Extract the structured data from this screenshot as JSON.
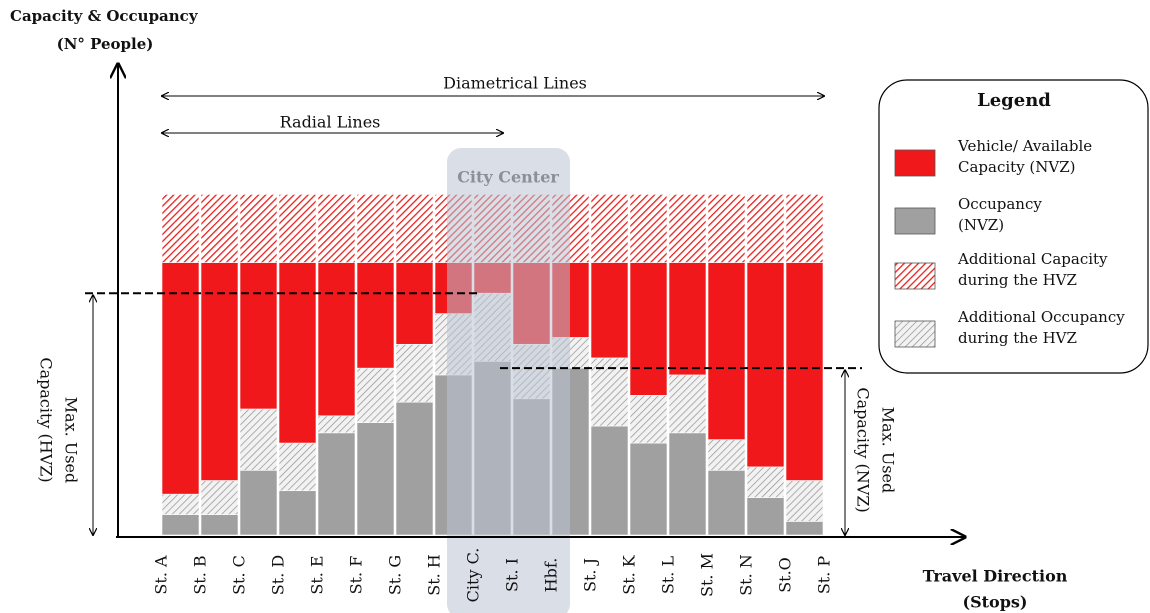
{
  "chart_data": {
    "type": "bar",
    "title": [
      "Capacity & Occupancy",
      "(N° People)"
    ],
    "x_label": [
      "Travel Direction",
      "(Stops)"
    ],
    "stops": [
      "St. A",
      "St. B",
      "St. C",
      "St. D",
      "St. E",
      "St. F",
      "St. G",
      "St. H",
      "City C.",
      "St. I",
      "Hbf.",
      "St. J",
      "St. K",
      "St. L",
      "St. M",
      "St. N",
      "St.O",
      "St. P"
    ],
    "ylim": [
      0,
      138
    ],
    "series": [
      {
        "name": [
          "Occupancy",
          "(NVZ)"
        ],
        "color": "#a0a0a0",
        "pattern": "solid",
        "values": [
          6,
          6,
          19,
          13,
          30,
          33,
          39,
          47,
          51,
          40,
          49,
          32,
          27,
          30,
          19,
          11,
          4
        ]
      },
      {
        "name": [
          "Additional Occupancy",
          "during the HVZ"
        ],
        "color": "#909090",
        "pattern": "hatch",
        "values": [
          6,
          10,
          18,
          14,
          5,
          16,
          17,
          18,
          20,
          16,
          9,
          20,
          14,
          17,
          9,
          9,
          12
        ]
      },
      {
        "name": [
          "Vehicle/ Available",
          "Capacity (NVZ)"
        ],
        "color": "#f0181a",
        "pattern": "solid",
        "values": [
          68,
          64,
          43,
          53,
          45,
          31,
          24,
          15,
          9,
          24,
          22,
          28,
          39,
          33,
          52,
          60,
          64
        ]
      },
      {
        "name": [
          "Additional Capacity",
          "during the HVZ"
        ],
        "color": "#e8201c",
        "pattern": "hatch",
        "values": [
          20,
          20,
          20,
          20,
          20,
          20,
          20,
          20,
          20,
          20,
          20,
          20,
          20,
          20,
          20,
          20,
          20
        ]
      }
    ],
    "legend_title": "Legend",
    "legend_order": [
      2,
      0,
      3,
      1
    ],
    "annotations": {
      "diametrical": "Diametrical Lines",
      "radial": "Radial Lines",
      "city_center": "City Center",
      "max_hvz": [
        "Max. Used",
        "Capacity (HVZ)"
      ],
      "max_nvz": [
        "Max. Used",
        "Capacity (NVZ)"
      ]
    }
  }
}
